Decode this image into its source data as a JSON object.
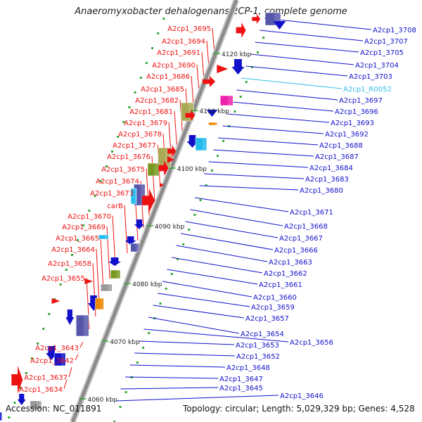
{
  "title": "Anaeromyxobacter dehalogenans 2CP-1, complete genome",
  "footer": {
    "accession": "Accession: NC_011891",
    "topology": "Topology: circular; Length: 5,029,329 bp; Genes: 4,528"
  },
  "colors": {
    "minus_strand_label": "#ee1111",
    "plus_strand_label": "#1111cc",
    "rna_label": "#33bbee",
    "backbone": "#8c8c8c",
    "gene_red": "#ee1111",
    "gene_blue": "#1111cc",
    "gene_olive": "#aaaa55",
    "gene_green": "#779922",
    "gene_navy": "#5555aa",
    "gene_cyan": "#22bbee",
    "gene_magenta": "#ee22aa",
    "gene_orange": "#ee8800",
    "gene_gray": "#999999",
    "tick_dot": "#33aa33"
  },
  "scale_labels": [
    "4120 kbp",
    "4110 kbp",
    "4100 kbp",
    "4090 kbp",
    "4080 kbp",
    "4070 kbp",
    "4060 kbp"
  ],
  "left_genes": [
    "A2cp1_3695",
    "A2cp1_3694",
    "A2cp1_3691",
    "A2cp1_3690",
    "A2cp1_3686",
    "A2cp1_3685",
    "A2cp1_3682",
    "A2cp1_3681",
    "A2cp1_3679",
    "A2cp1_3678",
    "A2cp1_3677",
    "A2cp1_3676",
    "A2cp1_3675",
    "A2cp1_3674",
    "A2cp1_3673",
    "carB",
    "A2cp1_3670",
    "A2cp1_3669",
    "A2cp1_3665",
    "A2cp1_3664",
    "A2cp1_3658",
    "A2cp1_3655",
    "A2cp1_3643",
    "A2cp1_3642",
    "A2cp1_3637",
    "A2cp1_3634"
  ],
  "right_genes": [
    "A2cp1_3708",
    "A2cp1_3707",
    "A2cp1_3705",
    "A2cp1_3704",
    "A2cp1_3703",
    "A2cp1_R0052",
    "A2cp1_3697",
    "A2cp1_3696",
    "A2cp1_3693",
    "A2cp1_3692",
    "A2cp1_3688",
    "A2cp1_3687",
    "A2cp1_3684",
    "A2cp1_3683",
    "A2cp1_3680",
    "A2cp1_3671",
    "A2cp1_3668",
    "A2cp1_3667",
    "A2cp1_3666",
    "A2cp1_3663",
    "A2cp1_3662",
    "A2cp1_3661",
    "A2cp1_3660",
    "A2cp1_3659",
    "A2cp1_3657",
    "A2cp1_3654",
    "A2cp1_3656",
    "A2cp1_3653",
    "A2cp1_3652",
    "A2cp1_3648",
    "A2cp1_3647",
    "A2cp1_3645",
    "A2cp1_3646"
  ]
}
